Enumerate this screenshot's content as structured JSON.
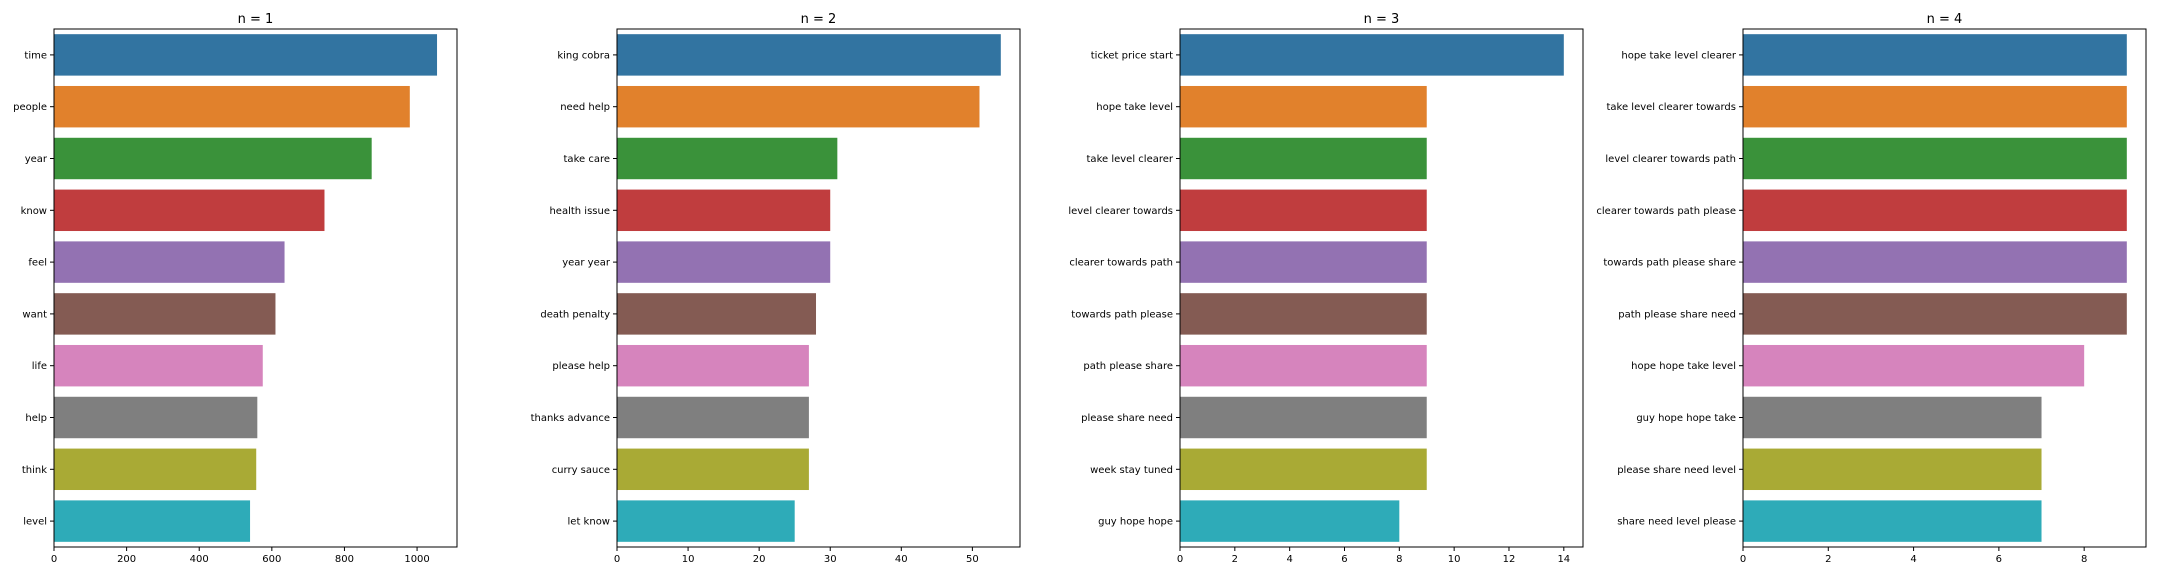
{
  "colors": [
    "#3274a1",
    "#e1812c",
    "#3a923a",
    "#c03d3e",
    "#9372b2",
    "#845b53",
    "#d684bd",
    "#7f7f7f",
    "#a9aa35",
    "#2eabb8"
  ],
  "chart_data": [
    {
      "type": "bar",
      "orientation": "horizontal",
      "title": "n = 1",
      "categories": [
        "time",
        "people",
        "year",
        "know",
        "feel",
        "want",
        "life",
        "help",
        "think",
        "level"
      ],
      "values": [
        1055,
        980,
        875,
        745,
        635,
        610,
        575,
        560,
        557,
        540
      ],
      "xlim": [
        0,
        1110
      ],
      "xticks": [
        0,
        200,
        400,
        600,
        800,
        1000
      ],
      "xlabel": "",
      "ylabel": "",
      "grid": false
    },
    {
      "type": "bar",
      "orientation": "horizontal",
      "title": "n = 2",
      "categories": [
        "king cobra",
        "need help",
        "take care",
        "health issue",
        "year year",
        "death penalty",
        "please help",
        "thanks advance",
        "curry sauce",
        "let know"
      ],
      "values": [
        54,
        51,
        31,
        30,
        30,
        28,
        27,
        27,
        27,
        25
      ],
      "xlim": [
        0,
        56.7
      ],
      "xticks": [
        0,
        10,
        20,
        30,
        40,
        50
      ],
      "xlabel": "",
      "ylabel": "",
      "grid": false
    },
    {
      "type": "bar",
      "orientation": "horizontal",
      "title": "n = 3",
      "categories": [
        "ticket price start",
        "hope take level",
        "take level clearer",
        "level clearer towards",
        "clearer towards path",
        "towards path please",
        "path please share",
        "please share need",
        "week stay tuned",
        "guy hope hope"
      ],
      "values": [
        14,
        9,
        9,
        9,
        9,
        9,
        9,
        9,
        9,
        8
      ],
      "xlim": [
        0,
        14.7
      ],
      "xticks": [
        0,
        2,
        4,
        6,
        8,
        10,
        12,
        14
      ],
      "xlabel": "",
      "ylabel": "",
      "grid": false
    },
    {
      "type": "bar",
      "orientation": "horizontal",
      "title": "n = 4",
      "categories": [
        "hope take level clearer",
        "take level clearer towards",
        "level clearer towards path",
        "clearer towards path please",
        "towards path please share",
        "path please share need",
        "hope hope take level",
        "guy hope hope take",
        "please share need level",
        "share need level please"
      ],
      "values": [
        9,
        9,
        9,
        9,
        9,
        9,
        8,
        7,
        7,
        7
      ],
      "xlim": [
        0,
        9.45
      ],
      "xticks": [
        0,
        2,
        4,
        6,
        8
      ],
      "xlabel": "",
      "ylabel": "",
      "grid": false
    }
  ]
}
